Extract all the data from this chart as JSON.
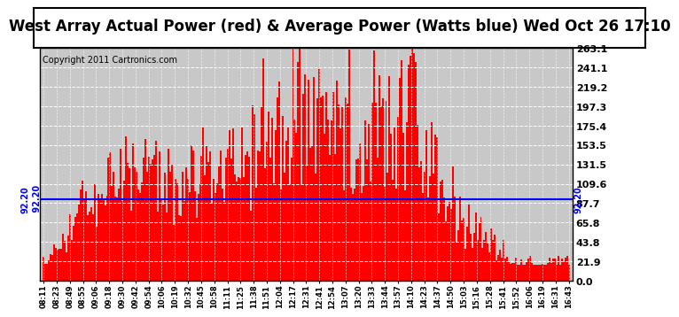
{
  "title": "West Array Actual Power (red) & Average Power (Watts blue) Wed Oct 26 17:10",
  "copyright": "Copyright 2011 Cartronics.com",
  "average_power": 92.2,
  "y_max": 263.1,
  "y_min": 0.0,
  "y_ticks": [
    0.0,
    21.9,
    43.8,
    65.8,
    87.7,
    109.6,
    131.5,
    153.5,
    175.4,
    197.3,
    219.2,
    241.1,
    263.1
  ],
  "x_labels": [
    "08:11",
    "08:23",
    "08:49",
    "08:55",
    "09:06",
    "09:18",
    "09:30",
    "09:42",
    "09:54",
    "10:06",
    "10:19",
    "10:32",
    "10:45",
    "10:58",
    "11:11",
    "11:25",
    "11:38",
    "11:51",
    "12:04",
    "12:17",
    "12:31",
    "12:41",
    "12:54",
    "13:07",
    "13:20",
    "13:33",
    "13:44",
    "13:57",
    "14:10",
    "14:23",
    "14:37",
    "14:50",
    "15:03",
    "15:16",
    "15:28",
    "15:41",
    "15:52",
    "16:06",
    "16:19",
    "16:31",
    "16:43"
  ],
  "bar_color": "#FF0000",
  "line_color": "#0000FF",
  "background_color": "#FFFFFF",
  "plot_bg_color": "#C8C8C8",
  "title_fontsize": 12,
  "copyright_fontsize": 7,
  "avg_label_fontsize": 7,
  "ytick_fontsize": 8,
  "xtick_fontsize": 6,
  "n_bars": 300,
  "envelope": [
    25,
    27,
    30,
    35,
    38,
    42,
    48,
    55,
    60,
    65,
    70,
    78,
    85,
    92,
    98,
    105,
    110,
    115,
    118,
    120,
    125,
    128,
    130,
    132,
    135,
    138,
    140,
    142,
    145,
    148,
    150,
    152,
    155,
    158,
    160,
    162,
    163,
    164,
    165,
    166,
    167,
    168,
    169,
    170,
    171,
    172,
    173,
    174,
    175,
    176,
    177,
    175,
    173,
    170,
    168,
    165,
    163,
    160,
    158,
    155,
    152,
    150,
    148,
    150,
    152,
    155,
    158,
    160,
    163,
    165,
    168,
    170,
    172,
    175,
    177,
    178,
    179,
    180,
    181,
    182,
    183,
    184,
    185,
    186,
    187,
    188,
    189,
    190,
    191,
    192,
    193,
    194,
    195,
    196,
    197,
    198,
    200,
    202,
    205,
    208,
    210,
    212,
    215,
    218,
    220,
    222,
    225,
    228,
    230,
    232,
    235,
    238,
    240,
    242,
    245,
    248,
    250,
    252,
    255,
    258,
    260,
    263,
    263,
    263,
    260,
    258,
    255,
    252,
    250,
    248,
    245,
    242,
    240,
    238,
    235,
    232,
    230,
    228,
    225,
    222,
    220,
    218,
    215,
    212,
    210,
    208,
    205,
    202,
    200,
    198,
    195,
    192,
    190,
    188,
    185,
    182,
    180,
    178,
    175,
    172,
    170,
    168,
    165,
    162,
    160,
    158,
    155,
    152,
    150,
    148,
    145,
    142,
    140,
    138,
    135,
    132,
    130,
    128,
    125,
    122,
    120,
    118,
    115,
    112,
    110,
    108,
    105,
    102,
    100,
    98,
    95,
    92,
    90,
    88,
    85,
    82,
    80,
    78,
    75,
    72,
    70,
    68,
    65,
    62,
    60,
    58,
    55,
    52,
    50,
    48,
    45,
    42,
    40,
    38,
    35,
    33,
    31,
    29,
    27,
    25,
    23,
    22,
    21,
    20,
    19,
    18,
    17,
    16,
    15,
    14,
    13,
    12,
    11,
    10,
    9,
    8,
    7,
    6,
    5,
    4
  ]
}
